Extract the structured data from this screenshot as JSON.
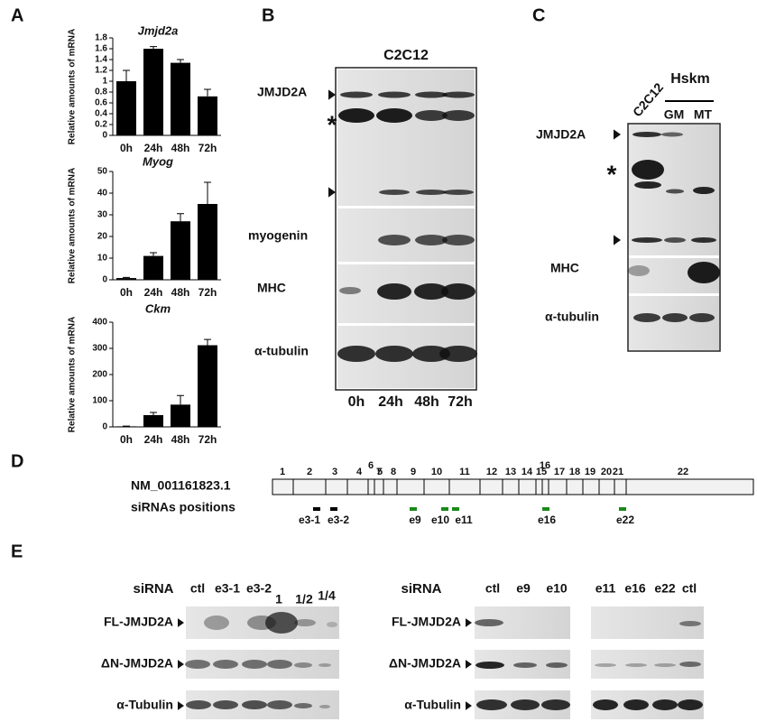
{
  "panel_labels": [
    "A",
    "B",
    "C",
    "D",
    "E"
  ],
  "chart_data": [
    {
      "type": "bar",
      "title": "Jmjd2a",
      "y_label": "Relative amounts of mRNA",
      "categories": [
        "0h",
        "24h",
        "48h",
        "72h"
      ],
      "values": [
        1.0,
        1.6,
        1.34,
        0.72
      ],
      "errors": [
        0.2,
        0.04,
        0.06,
        0.13
      ],
      "color": "#000000",
      "ylim": [
        0,
        1.8
      ],
      "yticks": [
        0,
        0.2,
        0.4,
        0.6,
        0.8,
        1,
        1.2,
        1.4,
        1.6,
        1.8
      ]
    },
    {
      "type": "bar",
      "title": "Myog",
      "y_label": "Relative amounts of mRNA",
      "categories": [
        "0h",
        "24h",
        "48h",
        "72h"
      ],
      "values": [
        0.8,
        11,
        27,
        35
      ],
      "errors": [
        0.3,
        1.5,
        3.5,
        10
      ],
      "color": "#000000",
      "ylim": [
        0,
        50
      ],
      "yticks": [
        0,
        10,
        20,
        30,
        40,
        50
      ]
    },
    {
      "type": "bar",
      "title": "Ckm",
      "y_label": "Relative amounts of mRNA",
      "categories": [
        "0h",
        "24h",
        "48h",
        "72h"
      ],
      "values": [
        2,
        45,
        85,
        312
      ],
      "errors": [
        1,
        10,
        35,
        22
      ],
      "color": "#000000",
      "ylim": [
        0,
        400
      ],
      "yticks": [
        0,
        100,
        200,
        300,
        400
      ]
    }
  ],
  "panel_b": {
    "title": "C2C12",
    "rows": [
      "JMJD2A",
      "myogenin",
      "MHC",
      "α-tubulin"
    ],
    "marker": "*",
    "lanes": [
      "0h",
      "24h",
      "48h",
      "72h"
    ]
  },
  "panel_c": {
    "lane": "C2C12",
    "group": "Hskm",
    "group_lanes": [
      "GM",
      "MT"
    ],
    "rows": [
      "JMJD2A",
      "MHC",
      "α-tubulin"
    ],
    "marker": "*"
  },
  "panel_d": {
    "transcript": "NM_001161823.1",
    "sirna_label": "siRNAs positions",
    "exons": [
      1,
      2,
      3,
      4,
      5,
      6,
      7,
      8,
      9,
      10,
      11,
      12,
      13,
      14,
      15,
      16,
      17,
      18,
      19,
      20,
      21,
      22
    ],
    "sirnas": [
      "e3-1",
      "e3-2",
      "e9",
      "e10",
      "e11",
      "e16",
      "e22"
    ]
  },
  "panel_e": {
    "left": {
      "header": "siRNA",
      "lanes": [
        "ctl",
        "e3-1",
        "e3-2",
        "1",
        "1/2",
        "1/4"
      ],
      "rows": [
        "FL-JMJD2A",
        "ΔN-JMJD2A",
        "α-Tubulin"
      ]
    },
    "right": {
      "header": "siRNA",
      "lanes": [
        "ctl",
        "e9",
        "e10",
        "e11",
        "e16",
        "e22",
        "ctl"
      ],
      "rows": [
        "FL-JMJD2A",
        "ΔN-JMJD2A",
        "α-Tubulin"
      ]
    }
  }
}
